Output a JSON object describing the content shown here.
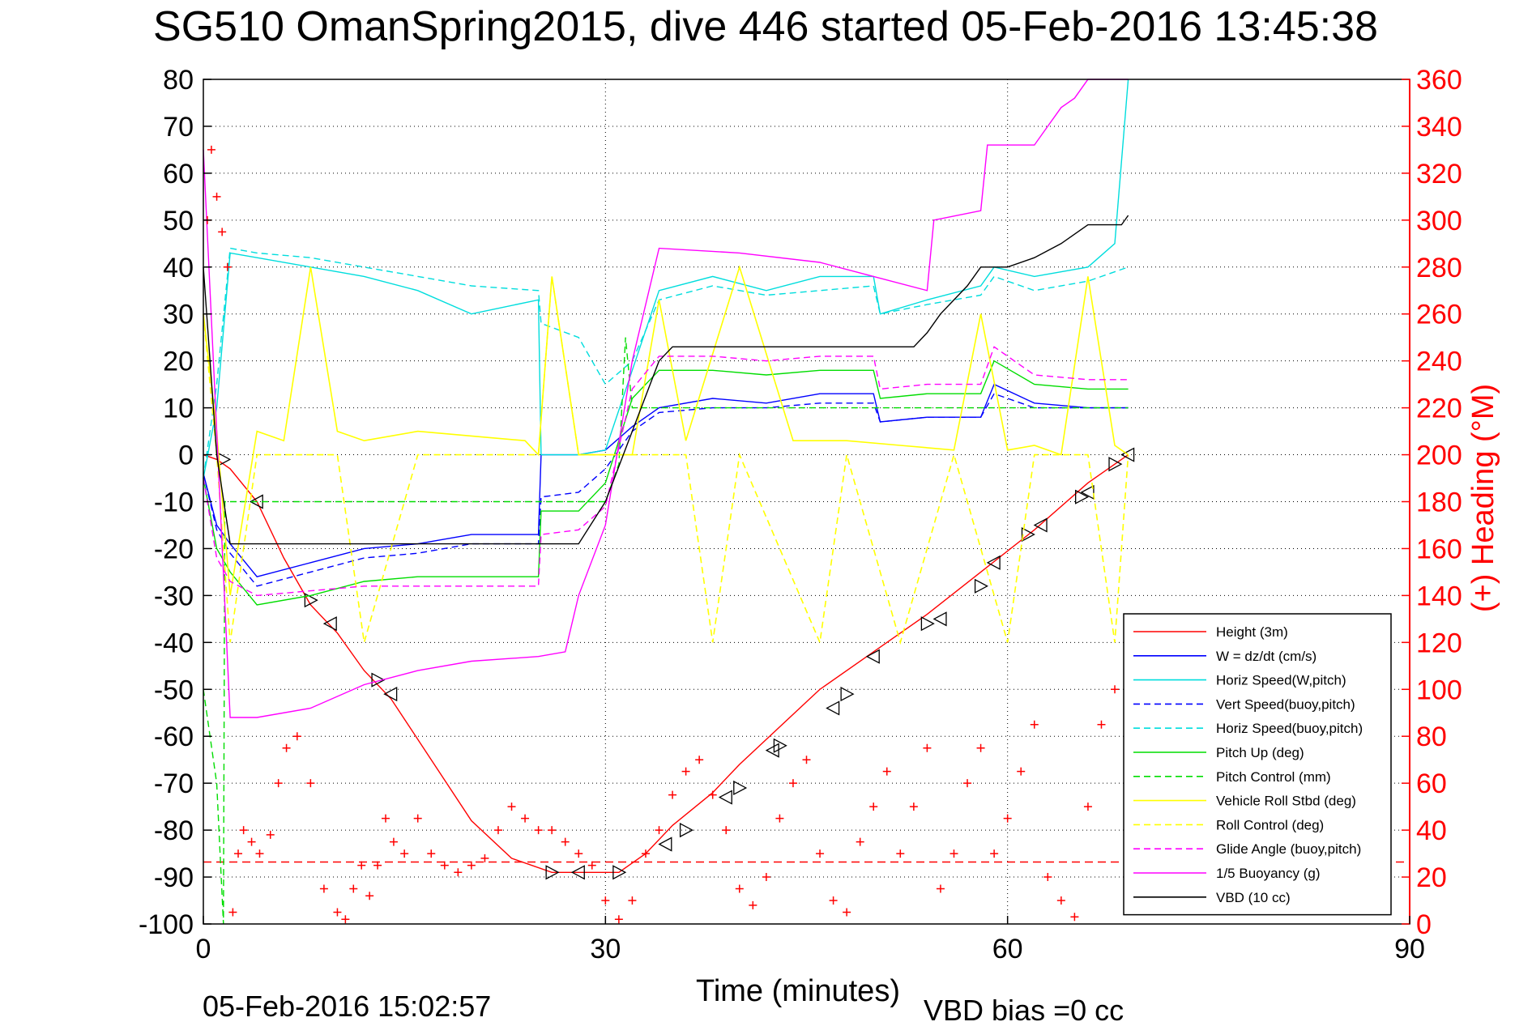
{
  "chart_data": {
    "type": "line",
    "title": "SG510 OmanSpring2015, dive 446 started 05-Feb-2016 13:45:38",
    "xlabel": "Time (minutes)",
    "ylabel_right": "(+) Heading (°M)",
    "footer_date": "05-Feb-2016 15:02:57",
    "footer_vbd": "VBD bias =0 cc",
    "grid": true,
    "legend_position": "bottom-right",
    "xlim": [
      0,
      90
    ],
    "ylim": [
      -100,
      80
    ],
    "y2lim": [
      0,
      360
    ],
    "x_ticks": [
      "0",
      "30",
      "60",
      "90"
    ],
    "y_ticks": [
      "80",
      "70",
      "60",
      "50",
      "40",
      "30",
      "20",
      "10",
      "0",
      "-10",
      "-20",
      "-30",
      "-40",
      "-50",
      "-60",
      "-70",
      "-80",
      "-90",
      "-100"
    ],
    "y2_ticks": [
      "360",
      "340",
      "320",
      "300",
      "280",
      "260",
      "240",
      "220",
      "200",
      "180",
      "160",
      "140",
      "120",
      "100",
      "80",
      "60",
      "40",
      "20",
      "0"
    ],
    "series": [
      {
        "name": "Height (3m)",
        "color": "#ff0000",
        "style": "solid",
        "axis": "left",
        "x": [
          0,
          1,
          2,
          4,
          6,
          8,
          10,
          12,
          14,
          17,
          20,
          23,
          26,
          28,
          30,
          31,
          33,
          35,
          38,
          40,
          43,
          46,
          50,
          54,
          58,
          62,
          66,
          69
        ],
        "y": [
          0,
          -1,
          -3,
          -10,
          -22,
          -32,
          -38,
          -46,
          -52,
          -65,
          -78,
          -86,
          -89,
          -89,
          -89,
          -89,
          -85,
          -79,
          -72,
          -66,
          -58,
          -50,
          -42,
          -34,
          -25,
          -16,
          -6,
          0
        ]
      },
      {
        "name": "W = dz/dt (cm/s)",
        "color": "#0000ff",
        "style": "solid",
        "axis": "left",
        "x": [
          0,
          1,
          2,
          4,
          8,
          12,
          16,
          20,
          25,
          25.2,
          28,
          30,
          32,
          34,
          38,
          42,
          46,
          50,
          50.5,
          54,
          58,
          59,
          62,
          66,
          69
        ],
        "y": [
          -4,
          -15,
          -19,
          -26,
          -23,
          -20,
          -19,
          -17,
          -17,
          0,
          0,
          1,
          6,
          10,
          12,
          11,
          13,
          13,
          7,
          8,
          8,
          15,
          11,
          10,
          10
        ]
      },
      {
        "name": "Horiz Speed(W,pitch)",
        "color": "#00dddd",
        "style": "solid",
        "axis": "left",
        "x": [
          0,
          1,
          2,
          4,
          8,
          12,
          16,
          20,
          25,
          25.2,
          28,
          30,
          32,
          34,
          38,
          42,
          46,
          50,
          50.5,
          54,
          58,
          59,
          62,
          66,
          68,
          69
        ],
        "y": [
          -5,
          10,
          43,
          42,
          40,
          38,
          35,
          30,
          33,
          0,
          0,
          1,
          18,
          35,
          38,
          35,
          38,
          38,
          30,
          33,
          36,
          40,
          38,
          40,
          45,
          80
        ]
      },
      {
        "name": "Vert Speed(buoy,pitch)",
        "color": "#0000ff",
        "style": "dashed",
        "axis": "left",
        "x": [
          0,
          1,
          2,
          4,
          8,
          12,
          16,
          20,
          25,
          25.2,
          28,
          30,
          32,
          34,
          38,
          42,
          46,
          50,
          50.5,
          54,
          58,
          59,
          62,
          66,
          69
        ],
        "y": [
          -4,
          -16,
          -21,
          -28,
          -25,
          -22,
          -21,
          -19,
          -19,
          -9,
          -8,
          -3,
          5,
          9,
          10,
          10,
          11,
          11,
          7,
          8,
          8,
          13,
          10,
          10,
          10
        ]
      },
      {
        "name": "Horiz Speed(buoy,pitch)",
        "color": "#00dddd",
        "style": "dashed",
        "axis": "left",
        "x": [
          0,
          1,
          2,
          4,
          8,
          12,
          16,
          20,
          25,
          25.2,
          28,
          30,
          32,
          34,
          38,
          42,
          46,
          50,
          50.5,
          54,
          58,
          59,
          62,
          66,
          69
        ],
        "y": [
          -5,
          15,
          44,
          43,
          42,
          40,
          38,
          36,
          35,
          28,
          25,
          15,
          20,
          33,
          36,
          34,
          35,
          36,
          30,
          32,
          34,
          38,
          35,
          37,
          40
        ]
      },
      {
        "name": "Pitch Up (deg)",
        "color": "#00dd00",
        "style": "solid",
        "axis": "left",
        "x": [
          0,
          1,
          2,
          4,
          8,
          12,
          16,
          20,
          25,
          25.2,
          28,
          30,
          32,
          34,
          38,
          42,
          46,
          50,
          50.5,
          54,
          58,
          59,
          62,
          66,
          69
        ],
        "y": [
          -5,
          -20,
          -25,
          -32,
          -30,
          -27,
          -26,
          -26,
          -26,
          -12,
          -12,
          -6,
          12,
          18,
          18,
          17,
          18,
          18,
          12,
          13,
          13,
          20,
          15,
          14,
          14
        ]
      },
      {
        "name": "Pitch Control (mm)",
        "color": "#00dd00",
        "style": "dashed",
        "axis": "left",
        "x": [
          0,
          1,
          1.5,
          1.6,
          2,
          30,
          31,
          31.5,
          32,
          50,
          50.5,
          69
        ],
        "y": [
          -50,
          -70,
          -100,
          -10,
          -10,
          -10,
          -2,
          25,
          10,
          10,
          10,
          10
        ]
      },
      {
        "name": "Vehicle Roll Stbd (deg)",
        "color": "#ffff00",
        "style": "solid",
        "axis": "left",
        "x": [
          0,
          1,
          2,
          4,
          6,
          8,
          10,
          12,
          16,
          20,
          24,
          25,
          26,
          28,
          30,
          32,
          34,
          36,
          40,
          44,
          48,
          52,
          56,
          58,
          60,
          62,
          64,
          66,
          68,
          69
        ],
        "y": [
          30,
          5,
          -30,
          5,
          3,
          40,
          5,
          3,
          5,
          4,
          3,
          0,
          38,
          0,
          0,
          0,
          33,
          3,
          40,
          3,
          3,
          2,
          1,
          30,
          1,
          2,
          0,
          38,
          2,
          0
        ]
      },
      {
        "name": "Roll Control (deg)",
        "color": "#ffff00",
        "style": "dashed",
        "axis": "left",
        "x": [
          0,
          1,
          2,
          4,
          8,
          10,
          12,
          16,
          20,
          24,
          25,
          26,
          28,
          30,
          32,
          34,
          36,
          38,
          40,
          46,
          48,
          52,
          56,
          60,
          62,
          64,
          66,
          68,
          69
        ],
        "y": [
          30,
          0,
          -40,
          0,
          0,
          0,
          -40,
          0,
          0,
          0,
          0,
          38,
          0,
          0,
          0,
          0,
          0,
          -40,
          0,
          -40,
          0,
          -40,
          0,
          -40,
          0,
          0,
          0,
          -40,
          0
        ]
      },
      {
        "name": "Glide Angle (buoy,pitch)",
        "color": "#ff00ff",
        "style": "dashed",
        "axis": "left",
        "x": [
          0,
          1,
          2,
          4,
          8,
          12,
          16,
          20,
          25,
          25.2,
          28,
          30,
          32,
          34,
          38,
          42,
          46,
          50,
          50.5,
          54,
          58,
          59,
          62,
          66,
          69
        ],
        "y": [
          -5,
          -22,
          -27,
          -30,
          -29,
          -28,
          -28,
          -28,
          -28,
          -17,
          -16,
          -11,
          14,
          21,
          21,
          20,
          21,
          21,
          14,
          15,
          15,
          23,
          17,
          16,
          16
        ]
      },
      {
        "name": "1/5 Buoyancy (g)",
        "color": "#ff00ff",
        "style": "solid",
        "axis": "left",
        "x": [
          0,
          1,
          2,
          4,
          8,
          12,
          16,
          20,
          25,
          27,
          28,
          30,
          32,
          34,
          40,
          46,
          50,
          54,
          54.5,
          58,
          58.5,
          62,
          63,
          64,
          65,
          66,
          69
        ],
        "y": [
          65,
          5,
          -56,
          -56,
          -54,
          -49,
          -46,
          -44,
          -43,
          -42,
          -30,
          -15,
          20,
          44,
          43,
          41,
          38,
          35,
          50,
          52,
          66,
          66,
          70,
          74,
          76,
          80,
          80
        ]
      },
      {
        "name": "VBD (10 cc)",
        "color": "#000000",
        "style": "solid",
        "axis": "left",
        "x": [
          0,
          1,
          2,
          4,
          8,
          20,
          28,
          30,
          32,
          34,
          35,
          50,
          53,
          54,
          55,
          57,
          58,
          60,
          62,
          64,
          66,
          67,
          68.5,
          69
        ],
        "y": [
          40,
          0,
          -19,
          -19,
          -19,
          -19,
          -19,
          -10,
          5,
          20,
          23,
          23,
          23,
          26,
          30,
          36,
          40,
          40,
          42,
          45,
          49,
          49,
          49,
          51
        ]
      },
      {
        "name": "Heading",
        "color": "#ff0000",
        "style": "markers-plus",
        "axis": "right",
        "x": [
          0.3,
          0.6,
          1,
          1.4,
          1.8,
          2.2,
          2.6,
          3,
          3.6,
          4.2,
          5,
          5.6,
          6.2,
          7,
          8,
          9,
          10,
          10.6,
          11.2,
          11.8,
          12.4,
          13,
          13.6,
          14.2,
          15,
          16,
          17,
          18,
          19,
          20,
          21,
          22,
          23,
          24,
          25,
          26,
          27,
          28,
          29,
          30,
          31,
          32,
          33,
          34,
          35,
          36,
          37,
          38,
          39,
          40,
          41,
          42,
          43,
          44,
          45,
          46,
          47,
          48,
          49,
          50,
          51,
          52,
          53,
          54,
          55,
          56,
          57,
          58,
          59,
          60,
          61,
          62,
          63,
          64,
          65,
          66,
          67,
          68,
          69
        ],
        "y": [
          300,
          330,
          310,
          295,
          280,
          5,
          30,
          40,
          35,
          30,
          38,
          60,
          75,
          80,
          60,
          15,
          5,
          2,
          15,
          25,
          12,
          25,
          45,
          35,
          30,
          45,
          30,
          25,
          22,
          25,
          28,
          40,
          50,
          45,
          40,
          40,
          35,
          30,
          25,
          10,
          2,
          10,
          30,
          40,
          55,
          65,
          70,
          55,
          40,
          15,
          8,
          20,
          45,
          60,
          70,
          30,
          10,
          5,
          35,
          50,
          65,
          30,
          50,
          75,
          15,
          30,
          60,
          75,
          30,
          45,
          65,
          85,
          20,
          10,
          3,
          50,
          85,
          100,
          20
        ]
      }
    ]
  }
}
